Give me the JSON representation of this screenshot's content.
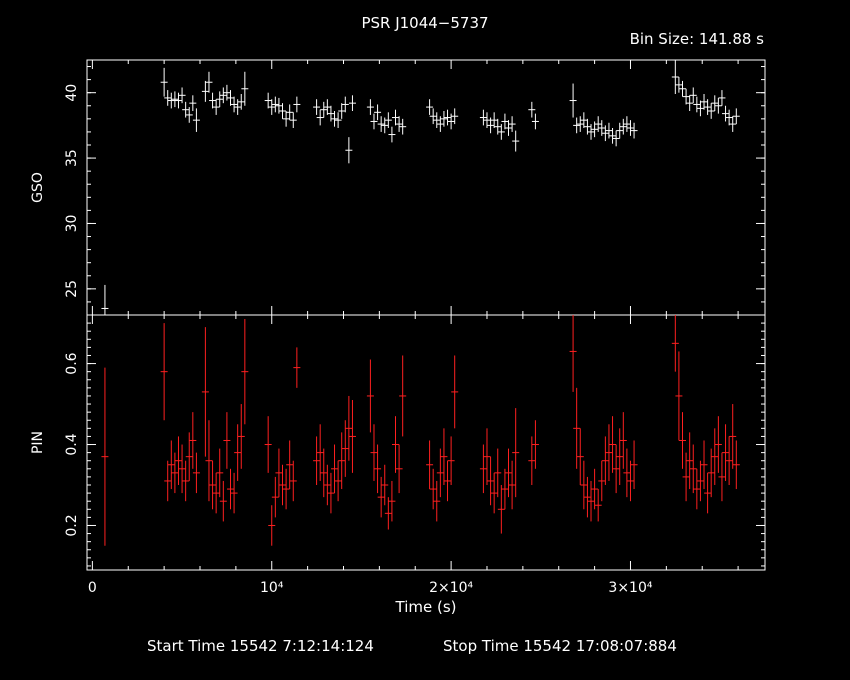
{
  "title": "PSR J1044−5737",
  "bin_size": "Bin Size: 141.88 s",
  "footer": {
    "start": "Start Time 15542  7:12:14:124",
    "stop": "Stop Time 15542 17:08:07:884"
  },
  "colors": {
    "background": "#000000",
    "axes": "#ffffff",
    "gso": "#ffffff",
    "pin": "#ff2020"
  },
  "chart_data": [
    {
      "type": "scatter",
      "name": "gso-panel",
      "ylabel": "GSO",
      "xlim": [
        -300,
        37500
      ],
      "ylim": [
        23,
        42.5
      ],
      "yticks": [
        25,
        30,
        35,
        40
      ],
      "ytick_labels": [
        "25",
        "30",
        "35",
        "40"
      ],
      "x": [
        700,
        4000,
        4200,
        4400,
        4600,
        4800,
        5000,
        5200,
        5400,
        5600,
        5800,
        6300,
        6500,
        6700,
        6900,
        7100,
        7300,
        7500,
        7700,
        7900,
        8100,
        8300,
        8500,
        9800,
        10000,
        10200,
        10400,
        10600,
        10800,
        11000,
        11200,
        11400,
        12500,
        12700,
        12900,
        13100,
        13300,
        13500,
        13700,
        13900,
        14100,
        14300,
        14500,
        15500,
        15700,
        15900,
        16100,
        16300,
        16500,
        16700,
        16900,
        17100,
        17300,
        18800,
        19000,
        19200,
        19400,
        19600,
        19800,
        20000,
        20200,
        21800,
        22000,
        22200,
        22400,
        22600,
        22800,
        23000,
        23200,
        23400,
        23600,
        24500,
        24700,
        26800,
        27000,
        27200,
        27400,
        27600,
        27800,
        28000,
        28200,
        28400,
        28600,
        28800,
        29000,
        29200,
        29400,
        29600,
        29800,
        30000,
        30200,
        32500,
        32700,
        32900,
        33100,
        33300,
        33500,
        33700,
        33900,
        34100,
        34300,
        34500,
        34700,
        34900,
        35100,
        35300,
        35500,
        35700,
        35900
      ],
      "y": [
        23.5,
        40.8,
        39.6,
        39.4,
        39.5,
        39.4,
        39.8,
        38.7,
        38.3,
        39.2,
        37.9,
        40.1,
        40.8,
        39.4,
        38.9,
        39.5,
        39.8,
        40.0,
        39.6,
        39.1,
        38.9,
        39.3,
        40.3,
        39.4,
        38.9,
        39.1,
        39.0,
        38.6,
        38.0,
        38.5,
        37.9,
        39.1,
        38.9,
        38.1,
        38.7,
        38.9,
        38.4,
        38.0,
        37.9,
        38.6,
        39.1,
        35.6,
        39.2,
        38.9,
        37.8,
        38.5,
        37.6,
        37.5,
        37.9,
        36.8,
        38.1,
        37.6,
        37.4,
        38.9,
        38.2,
        37.9,
        37.6,
        38.0,
        38.1,
        37.8,
        38.2,
        38.1,
        37.9,
        37.5,
        37.9,
        37.4,
        37.0,
        37.8,
        37.3,
        37.6,
        36.3,
        38.7,
        37.8,
        39.4,
        37.5,
        37.6,
        37.9,
        37.4,
        37.0,
        37.2,
        37.6,
        37.3,
        36.9,
        37.1,
        36.7,
        36.5,
        37.1,
        37.4,
        37.6,
        37.3,
        37.1,
        41.2,
        40.6,
        40.3,
        39.7,
        39.2,
        39.8,
        39.1,
        38.8,
        39.3,
        38.9,
        38.6,
        39.2,
        39.0,
        39.6,
        38.4,
        38.1,
        37.6,
        38.2
      ],
      "yerr": [
        1.8,
        1.1,
        0.6,
        0.6,
        0.6,
        0.6,
        0.6,
        0.6,
        0.6,
        0.6,
        0.9,
        0.8,
        0.8,
        0.6,
        0.6,
        0.6,
        0.6,
        0.6,
        0.6,
        0.6,
        0.6,
        0.6,
        1.3,
        0.6,
        0.6,
        0.6,
        0.6,
        0.6,
        0.6,
        0.6,
        0.6,
        0.6,
        0.6,
        0.6,
        0.6,
        0.6,
        0.6,
        0.6,
        0.6,
        0.6,
        0.6,
        1.0,
        0.6,
        0.6,
        0.6,
        0.6,
        0.6,
        0.6,
        0.6,
        0.6,
        0.6,
        0.6,
        0.6,
        0.6,
        0.6,
        0.6,
        0.6,
        0.6,
        0.6,
        0.6,
        0.6,
        0.6,
        0.6,
        0.6,
        0.6,
        0.6,
        0.6,
        0.6,
        0.6,
        0.6,
        0.8,
        0.6,
        0.6,
        1.3,
        0.6,
        0.6,
        0.6,
        0.6,
        0.6,
        0.6,
        0.6,
        0.6,
        0.6,
        0.6,
        0.6,
        0.6,
        0.6,
        0.6,
        0.6,
        0.6,
        0.6,
        1.3,
        0.6,
        0.6,
        0.6,
        0.6,
        0.6,
        0.6,
        0.6,
        0.6,
        0.6,
        0.6,
        0.6,
        0.6,
        0.6,
        0.6,
        0.6,
        0.6,
        0.6
      ]
    },
    {
      "type": "scatter",
      "name": "pin-panel",
      "xlabel": "Time (s)",
      "ylabel": "PIN",
      "xlim": [
        -300,
        37500
      ],
      "ylim": [
        0.09,
        0.72
      ],
      "xticks": [
        0,
        10000,
        20000,
        30000
      ],
      "xtick_labels": [
        "0",
        "10⁴",
        "2×10⁴",
        "3×10⁴"
      ],
      "yticks": [
        0.2,
        0.4,
        0.6
      ],
      "ytick_labels": [
        "0.2",
        "0.4",
        "0.6"
      ],
      "x": [
        700,
        4000,
        4200,
        4400,
        4600,
        4800,
        5000,
        5200,
        5400,
        5600,
        5800,
        6300,
        6500,
        6700,
        6900,
        7100,
        7300,
        7500,
        7700,
        7900,
        8100,
        8300,
        8500,
        9800,
        10000,
        10200,
        10400,
        10600,
        10800,
        11000,
        11200,
        11400,
        12500,
        12700,
        12900,
        13100,
        13300,
        13500,
        13700,
        13900,
        14100,
        14300,
        14500,
        15500,
        15700,
        15900,
        16100,
        16300,
        16500,
        16700,
        16900,
        17100,
        17300,
        18800,
        19000,
        19200,
        19400,
        19600,
        19800,
        20000,
        20200,
        21800,
        22000,
        22200,
        22400,
        22600,
        22800,
        23000,
        23200,
        23400,
        23600,
        24500,
        24700,
        26800,
        27000,
        27200,
        27400,
        27600,
        27800,
        28000,
        28200,
        28400,
        28600,
        28800,
        29000,
        29200,
        29400,
        29600,
        29800,
        30000,
        30200,
        32500,
        32700,
        32900,
        33100,
        33300,
        33500,
        33700,
        33900,
        34100,
        34300,
        34500,
        34700,
        34900,
        35100,
        35300,
        35500,
        35700,
        35900
      ],
      "y": [
        0.37,
        0.58,
        0.31,
        0.35,
        0.33,
        0.36,
        0.34,
        0.31,
        0.37,
        0.41,
        0.33,
        0.53,
        0.36,
        0.3,
        0.28,
        0.33,
        0.26,
        0.41,
        0.29,
        0.28,
        0.38,
        0.42,
        0.58,
        0.4,
        0.2,
        0.27,
        0.33,
        0.3,
        0.29,
        0.35,
        0.31,
        0.59,
        0.36,
        0.38,
        0.33,
        0.3,
        0.28,
        0.34,
        0.31,
        0.36,
        0.39,
        0.44,
        0.42,
        0.52,
        0.38,
        0.34,
        0.27,
        0.3,
        0.23,
        0.26,
        0.4,
        0.34,
        0.52,
        0.35,
        0.29,
        0.26,
        0.33,
        0.37,
        0.31,
        0.36,
        0.53,
        0.34,
        0.37,
        0.31,
        0.28,
        0.33,
        0.24,
        0.29,
        0.33,
        0.3,
        0.38,
        0.36,
        0.4,
        0.63,
        0.44,
        0.37,
        0.3,
        0.27,
        0.26,
        0.29,
        0.25,
        0.31,
        0.36,
        0.38,
        0.4,
        0.34,
        0.37,
        0.41,
        0.33,
        0.31,
        0.35,
        0.65,
        0.52,
        0.41,
        0.32,
        0.36,
        0.34,
        0.29,
        0.31,
        0.35,
        0.28,
        0.33,
        0.37,
        0.4,
        0.32,
        0.38,
        0.36,
        0.42,
        0.35
      ],
      "yerr": [
        0.22,
        0.12,
        0.05,
        0.06,
        0.05,
        0.06,
        0.06,
        0.05,
        0.06,
        0.07,
        0.05,
        0.16,
        0.1,
        0.06,
        0.05,
        0.06,
        0.05,
        0.07,
        0.05,
        0.05,
        0.07,
        0.08,
        0.13,
        0.07,
        0.05,
        0.05,
        0.06,
        0.05,
        0.05,
        0.06,
        0.05,
        0.05,
        0.06,
        0.07,
        0.06,
        0.05,
        0.05,
        0.06,
        0.05,
        0.07,
        0.07,
        0.08,
        0.09,
        0.09,
        0.07,
        0.06,
        0.05,
        0.05,
        0.04,
        0.05,
        0.07,
        0.06,
        0.1,
        0.06,
        0.05,
        0.05,
        0.06,
        0.07,
        0.05,
        0.06,
        0.09,
        0.06,
        0.07,
        0.06,
        0.05,
        0.06,
        0.06,
        0.05,
        0.06,
        0.06,
        0.11,
        0.06,
        0.06,
        0.1,
        0.1,
        0.07,
        0.06,
        0.05,
        0.05,
        0.05,
        0.04,
        0.05,
        0.06,
        0.07,
        0.07,
        0.06,
        0.07,
        0.07,
        0.06,
        0.05,
        0.06,
        0.07,
        0.11,
        0.07,
        0.06,
        0.07,
        0.06,
        0.05,
        0.05,
        0.06,
        0.05,
        0.06,
        0.07,
        0.07,
        0.06,
        0.07,
        0.06,
        0.08,
        0.06
      ]
    }
  ]
}
